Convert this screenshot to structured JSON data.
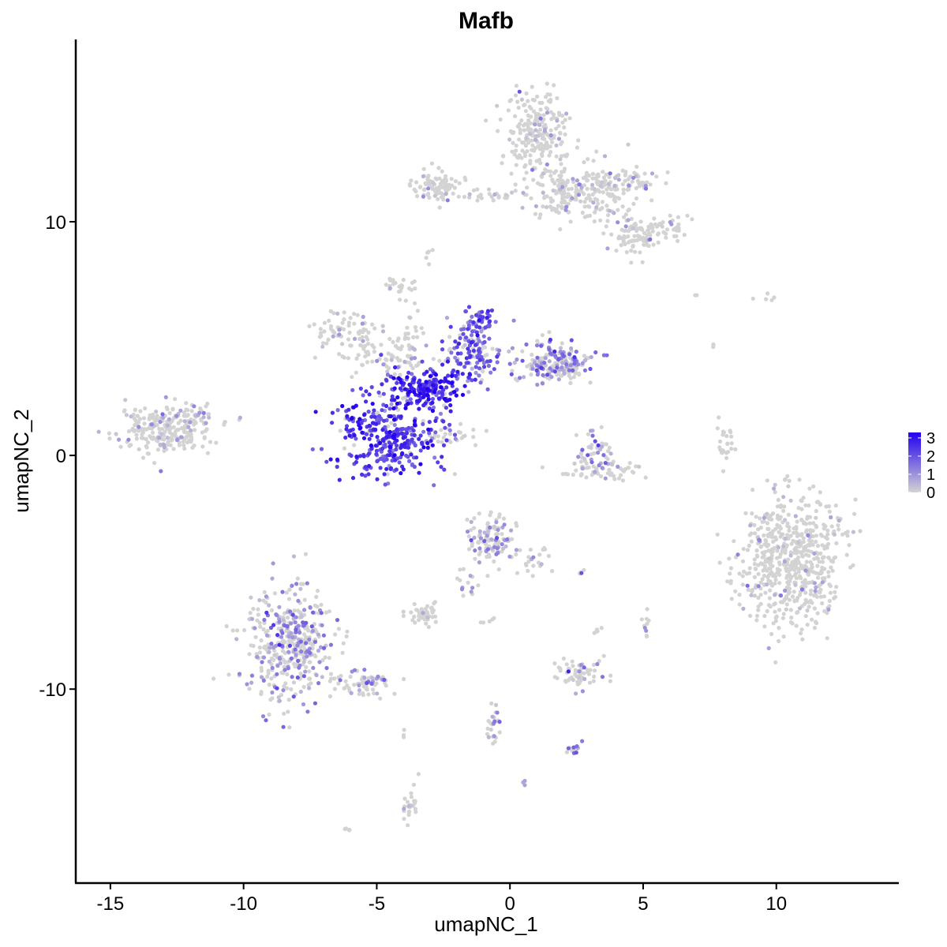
{
  "chart_data": {
    "type": "scatter",
    "title": "Mafb",
    "xlabel": "umapNC_1",
    "ylabel": "umapNC_2",
    "xlim": [
      -16.3,
      14.6
    ],
    "ylim": [
      -18.3,
      17.8
    ],
    "xticks": [
      -15,
      -10,
      -5,
      0,
      5,
      10
    ],
    "xtick_labels": [
      "-15",
      "-10",
      "-5",
      "0",
      "5",
      "10"
    ],
    "yticks": [
      -10,
      0,
      10
    ],
    "ytick_labels": [
      "-10",
      "0",
      "10"
    ],
    "grid": false,
    "legend": {
      "placement": "right",
      "ticks": [
        3,
        2,
        1,
        0
      ],
      "tick_labels": [
        "3",
        "2",
        "1",
        "0"
      ],
      "min": 0,
      "max": 3.3
    },
    "colors": {
      "low": "#d3d3d3",
      "high": "#2200ee"
    },
    "point_size": "small",
    "clusters": [
      {
        "name": "",
        "center": [
          -12.9,
          1.1
        ],
        "spread": [
          0.85,
          0.55
        ],
        "n": 240,
        "expr": 0.3
      },
      {
        "name": "",
        "center": [
          -12.0,
          1.6
        ],
        "spread": [
          0.5,
          0.3
        ],
        "n": 40,
        "expr": 0.5
      },
      {
        "name": "",
        "center": [
          -6.2,
          5.3
        ],
        "spread": [
          0.65,
          0.45
        ],
        "n": 70,
        "expr": 0.15
      },
      {
        "name": "",
        "center": [
          -4.7,
          4.2
        ],
        "spread": [
          0.9,
          0.5
        ],
        "n": 70,
        "expr": 0.3
      },
      {
        "name": "",
        "center": [
          -4.6,
          0.8
        ],
        "spread": [
          1.0,
          0.9
        ],
        "n": 330,
        "expr": 2.3
      },
      {
        "name": "",
        "center": [
          -3.3,
          2.8
        ],
        "spread": [
          0.75,
          0.45
        ],
        "n": 200,
        "expr": 2.5
      },
      {
        "name": "",
        "center": [
          -1.5,
          4.4
        ],
        "spread": [
          0.6,
          0.6
        ],
        "n": 140,
        "expr": 1.8
      },
      {
        "name": "",
        "center": [
          -1.1,
          5.8
        ],
        "spread": [
          0.35,
          0.3
        ],
        "n": 45,
        "expr": 2.0
      },
      {
        "name": "",
        "center": [
          1.6,
          4.0
        ],
        "spread": [
          0.7,
          0.45
        ],
        "n": 160,
        "expr": 1.2
      },
      {
        "name": "",
        "center": [
          2.2,
          3.7
        ],
        "spread": [
          0.3,
          0.3
        ],
        "n": 50,
        "expr": 0.5
      },
      {
        "name": "",
        "center": [
          -4.2,
          7.3
        ],
        "spread": [
          0.3,
          0.2
        ],
        "n": 20,
        "expr": 0.05
      },
      {
        "name": "",
        "center": [
          -3.7,
          4.8
        ],
        "spread": [
          0.2,
          1.0
        ],
        "n": 30,
        "expr": 0.2
      },
      {
        "name": "",
        "center": [
          -2.3,
          0.8
        ],
        "spread": [
          0.5,
          0.2
        ],
        "n": 30,
        "expr": 0.3
      },
      {
        "name": "",
        "center": [
          -2.7,
          11.5
        ],
        "spread": [
          0.55,
          0.35
        ],
        "n": 90,
        "expr": 0.1
      },
      {
        "name": "",
        "center": [
          -0.8,
          11.1
        ],
        "spread": [
          0.8,
          0.15
        ],
        "n": 25,
        "expr": 0.1
      },
      {
        "name": "",
        "center": [
          1.0,
          13.8
        ],
        "spread": [
          0.6,
          0.9
        ],
        "n": 220,
        "expr": 0.1
      },
      {
        "name": "",
        "center": [
          1.8,
          11.3
        ],
        "spread": [
          0.6,
          0.5
        ],
        "n": 90,
        "expr": 0.15
      },
      {
        "name": "",
        "center": [
          3.3,
          11.2
        ],
        "spread": [
          0.9,
          0.7
        ],
        "n": 150,
        "expr": 0.2
      },
      {
        "name": "",
        "center": [
          4.5,
          11.8
        ],
        "spread": [
          0.6,
          0.2
        ],
        "n": 40,
        "expr": 0.3
      },
      {
        "name": "",
        "center": [
          5.2,
          9.7
        ],
        "spread": [
          0.7,
          0.3
        ],
        "n": 80,
        "expr": 0.1
      },
      {
        "name": "",
        "center": [
          4.6,
          9.0
        ],
        "spread": [
          0.4,
          0.3
        ],
        "n": 35,
        "expr": 0.1
      },
      {
        "name": "",
        "center": [
          -3.0,
          8.5
        ],
        "spread": [
          0.1,
          0.2
        ],
        "n": 6,
        "expr": 0.8
      },
      {
        "name": "",
        "center": [
          3.1,
          0.1
        ],
        "spread": [
          0.4,
          0.45
        ],
        "n": 45,
        "expr": 1.0
      },
      {
        "name": "",
        "center": [
          3.4,
          -0.7
        ],
        "spread": [
          0.75,
          0.2
        ],
        "n": 55,
        "expr": 0.15
      },
      {
        "name": "",
        "center": [
          8.1,
          0.4
        ],
        "spread": [
          0.2,
          0.5
        ],
        "n": 25,
        "expr": 0.2
      },
      {
        "name": "",
        "center": [
          10.6,
          -4.5
        ],
        "spread": [
          1.0,
          1.35
        ],
        "n": 600,
        "expr": 0.1
      },
      {
        "name": "",
        "center": [
          -0.7,
          -3.6
        ],
        "spread": [
          0.45,
          0.45
        ],
        "n": 110,
        "expr": 0.9
      },
      {
        "name": "",
        "center": [
          0.9,
          -4.5
        ],
        "spread": [
          0.35,
          0.3
        ],
        "n": 25,
        "expr": 0.2
      },
      {
        "name": "",
        "center": [
          -1.5,
          -5.4
        ],
        "spread": [
          0.2,
          0.4
        ],
        "n": 15,
        "expr": 0.8
      },
      {
        "name": "",
        "center": [
          -3.2,
          -6.8
        ],
        "spread": [
          0.3,
          0.2
        ],
        "n": 45,
        "expr": 0.1
      },
      {
        "name": "",
        "center": [
          -8.2,
          -8.1
        ],
        "spread": [
          0.85,
          1.2
        ],
        "n": 420,
        "expr": 0.9
      },
      {
        "name": "",
        "center": [
          -5.4,
          -9.7
        ],
        "spread": [
          0.6,
          0.3
        ],
        "n": 70,
        "expr": 0.8
      },
      {
        "name": "",
        "center": [
          2.6,
          -9.3
        ],
        "spread": [
          0.4,
          0.3
        ],
        "n": 60,
        "expr": 0.5
      },
      {
        "name": "",
        "center": [
          -0.6,
          -11.6
        ],
        "spread": [
          0.15,
          0.6
        ],
        "n": 25,
        "expr": 0.8
      },
      {
        "name": "",
        "center": [
          2.4,
          -12.5
        ],
        "spread": [
          0.25,
          0.12
        ],
        "n": 15,
        "expr": 1.2
      },
      {
        "name": "",
        "center": [
          -3.8,
          -14.9
        ],
        "spread": [
          0.15,
          0.55
        ],
        "n": 25,
        "expr": 0.2
      },
      {
        "name": "",
        "center": [
          5.1,
          -7.2
        ],
        "spread": [
          0.15,
          0.25
        ],
        "n": 10,
        "expr": 0.5
      },
      {
        "name": "",
        "center": [
          3.3,
          -7.5
        ],
        "spread": [
          0.1,
          0.15
        ],
        "n": 5,
        "expr": 0.2
      },
      {
        "name": "",
        "center": [
          2.6,
          -5.0
        ],
        "spread": [
          0.1,
          0.1
        ],
        "n": 4,
        "expr": 0.8
      },
      {
        "name": "",
        "center": [
          -1.0,
          -7.1
        ],
        "spread": [
          0.3,
          0.2
        ],
        "n": 5,
        "expr": 0.1
      },
      {
        "name": "",
        "center": [
          0.6,
          -14.0
        ],
        "spread": [
          0.05,
          0.05
        ],
        "n": 3,
        "expr": 0.8
      },
      {
        "name": "",
        "center": [
          -6.1,
          -16.0
        ],
        "spread": [
          0.08,
          0.05
        ],
        "n": 4,
        "expr": 0.1
      },
      {
        "name": "",
        "center": [
          7.6,
          4.8
        ],
        "spread": [
          0.08,
          0.15
        ],
        "n": 3,
        "expr": 0.1
      },
      {
        "name": "",
        "center": [
          9.6,
          6.8
        ],
        "spread": [
          0.3,
          0.15
        ],
        "n": 5,
        "expr": 0.1
      },
      {
        "name": "",
        "center": [
          7.0,
          6.9
        ],
        "spread": [
          0.05,
          0.05
        ],
        "n": 2,
        "expr": 0.1
      },
      {
        "name": "",
        "center": [
          -4.0,
          -11.9
        ],
        "spread": [
          0.05,
          0.1
        ],
        "n": 3,
        "expr": 0.1
      }
    ]
  }
}
